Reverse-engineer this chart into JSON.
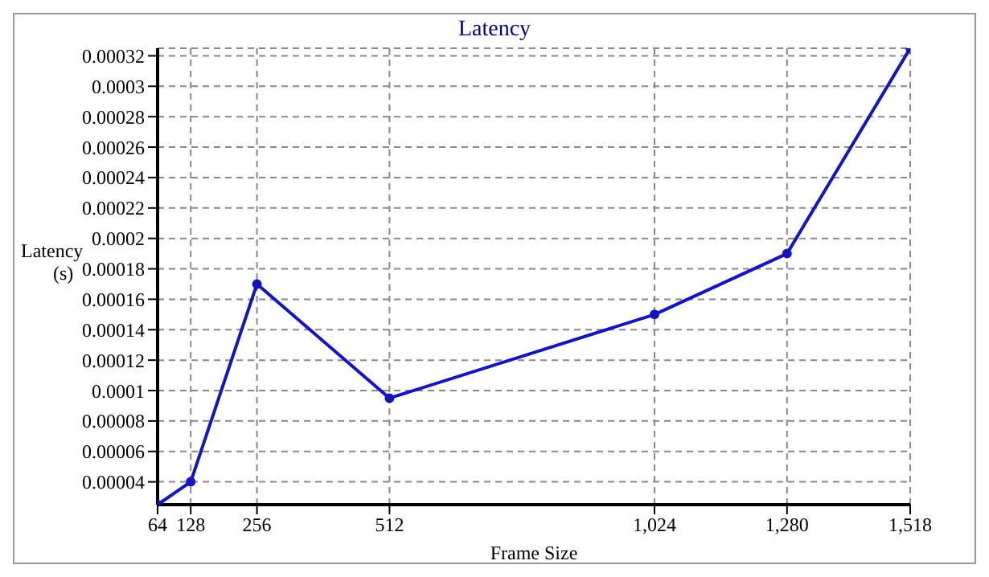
{
  "chart_data": {
    "type": "line",
    "title": "Latency",
    "xlabel": "Frame Size",
    "ylabel": "Latency (s)",
    "x": [
      64,
      128,
      256,
      512,
      1024,
      1280,
      1518
    ],
    "series": [
      {
        "color": "#1414c0",
        "values": [
          2.5e-05,
          4e-05,
          0.00017,
          9.5e-05,
          0.00015,
          0.00019,
          0.000325
        ]
      }
    ],
    "xlim": [
      64,
      1518
    ],
    "xticks": [
      64,
      128,
      256,
      512,
      {
        "value": 1024,
        "label": "1,024"
      },
      {
        "value": 1280,
        "label": "1,280"
      },
      {
        "value": 1518,
        "label": "1,518"
      }
    ],
    "ylim": [
      2.5e-05,
      0.000325
    ],
    "yticks": [
      {
        "value": 4e-05,
        "label": "0.00004"
      },
      {
        "value": 6e-05,
        "label": "0.00006"
      },
      {
        "value": 8e-05,
        "label": "0.00008"
      },
      0.0001,
      0.00012,
      0.00014,
      0.00016,
      0.00018,
      0.0002,
      0.00022,
      0.00024,
      0.00026,
      0.00028,
      0.0003,
      0.00032
    ],
    "grid": true,
    "legend": false,
    "marker": "circle",
    "line_style": "solid"
  }
}
